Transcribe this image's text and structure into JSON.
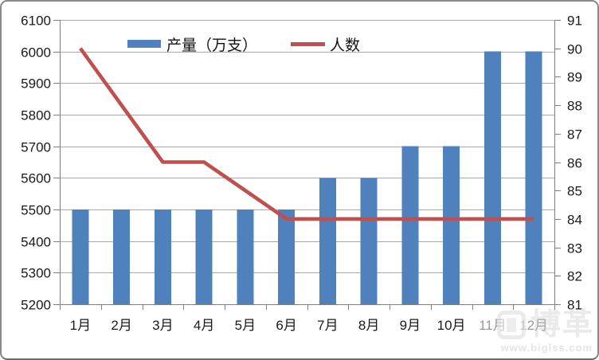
{
  "watermark": {
    "logo_text": "博革",
    "url": "www.biglss.com"
  },
  "chart_data": {
    "type": "combo-bar-line",
    "title": "",
    "categories": [
      "1月",
      "2月",
      "3月",
      "4月",
      "5月",
      "6月",
      "7月",
      "8月",
      "9月",
      "10月",
      "11月",
      "12月"
    ],
    "series": [
      {
        "name": "产量（万支）",
        "type": "bar",
        "axis": "left",
        "color": "#4F81BD",
        "values": [
          5500,
          5500,
          5500,
          5500,
          5500,
          5500,
          5600,
          5600,
          5700,
          5700,
          6000,
          6000
        ]
      },
      {
        "name": "人数",
        "type": "line",
        "axis": "right",
        "color": "#C0504D",
        "values": [
          90,
          88,
          86,
          86,
          85,
          84,
          84,
          84,
          84,
          84,
          84,
          84
        ]
      }
    ],
    "left_axis": {
      "min": 5200,
      "max": 6100,
      "step": 100,
      "ticks": [
        "6100",
        "6000",
        "5900",
        "5800",
        "5700",
        "5600",
        "5500",
        "5400",
        "5300",
        "5200"
      ]
    },
    "right_axis": {
      "min": 81,
      "max": 91,
      "step": 1,
      "ticks": [
        "91",
        "90",
        "89",
        "88",
        "87",
        "86",
        "85",
        "84",
        "83",
        "82",
        "81"
      ]
    },
    "grid": true,
    "legend_position": "top-center",
    "colors": {
      "grid": "#a8a8a8",
      "axis": "#7f7f7f",
      "tick_text": "#1a1a1a"
    }
  }
}
